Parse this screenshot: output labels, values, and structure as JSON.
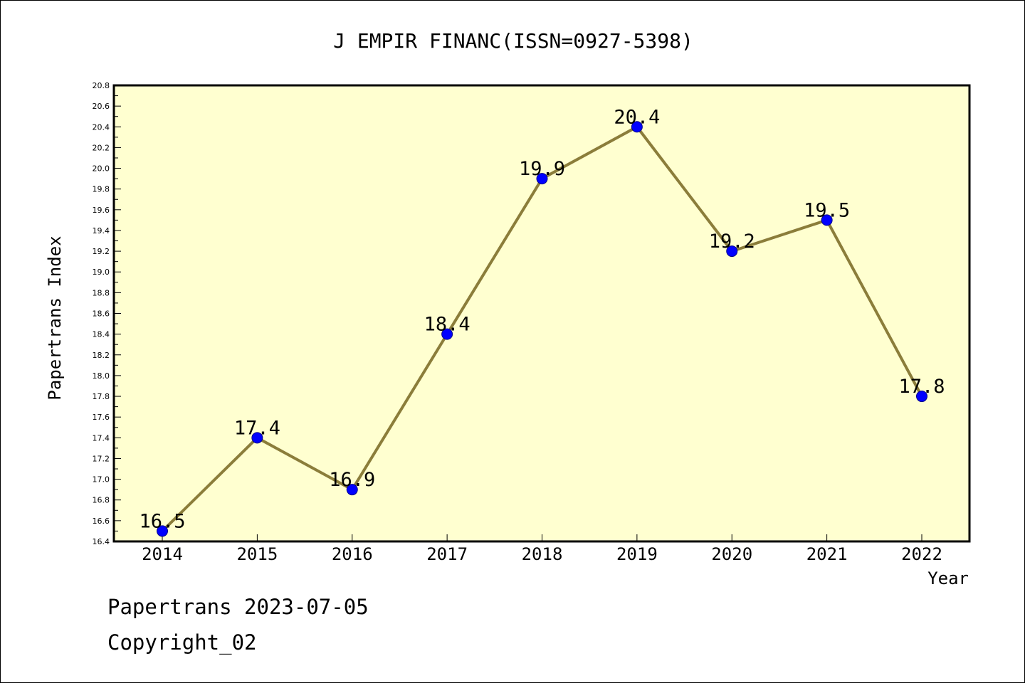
{
  "footer": {
    "date_line": "Papertrans 2023-07-05",
    "copyright": "Copyright_02"
  },
  "colors": {
    "plot_background": "#ffffd0",
    "line": "#8b7d3a",
    "marker": "#0000ff",
    "marker_edge": "#00008b",
    "axes": "#000000"
  },
  "chart_data": {
    "type": "line",
    "title": "J EMPIR FINANC(ISSN=0927-5398)",
    "xlabel": "Year",
    "ylabel": "Papertrans Index",
    "categories": [
      "2014",
      "2015",
      "2016",
      "2017",
      "2018",
      "2019",
      "2020",
      "2021",
      "2022"
    ],
    "series": [
      {
        "values": [
          16.5,
          17.4,
          16.9,
          18.4,
          19.9,
          20.4,
          19.2,
          19.5,
          17.8
        ],
        "data_labels": [
          "16.5",
          "17.4",
          "16.9",
          "18.4",
          "19.9",
          "20.4",
          "19.2",
          "19.5",
          "17.8"
        ]
      }
    ],
    "ylim": [
      16.4,
      20.8
    ],
    "yticks": [
      "16.4",
      "16.6",
      "16.8",
      "17.0",
      "17.2",
      "17.4",
      "17.6",
      "17.8",
      "18.0",
      "18.2",
      "18.4",
      "18.6",
      "18.8",
      "19.0",
      "19.2",
      "19.4",
      "19.6",
      "19.8",
      "20.0",
      "20.2",
      "20.4",
      "20.6",
      "20.8"
    ],
    "grid": false,
    "legend": "none"
  }
}
